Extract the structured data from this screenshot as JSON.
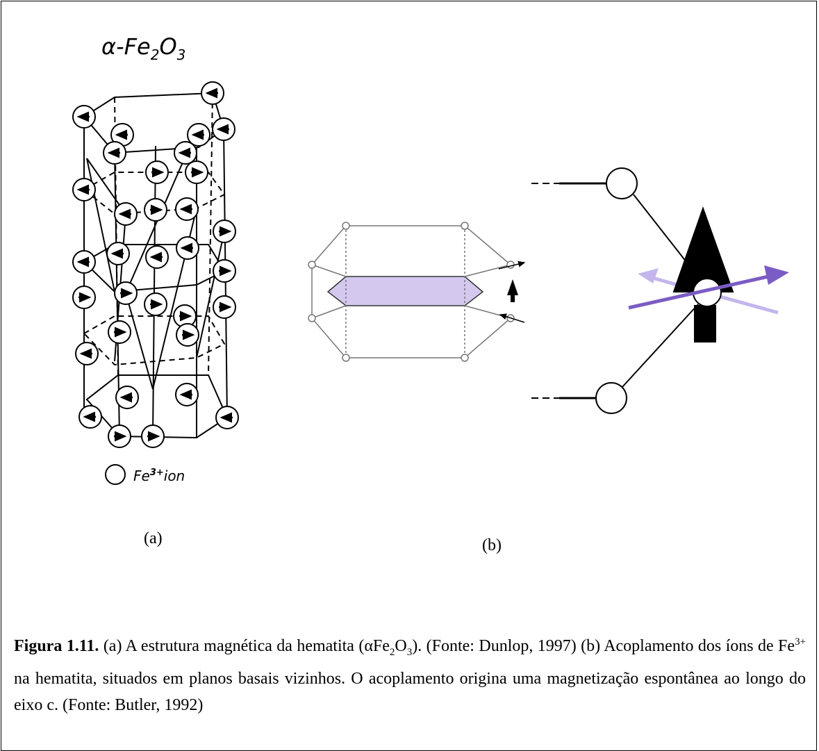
{
  "figure": {
    "panel_a": {
      "title": [
        "α-Fe",
        "2",
        "O",
        "3"
      ],
      "legend": [
        "Fe",
        "3+",
        "ion"
      ],
      "label": "(a)"
    },
    "panel_b": {
      "label": "(b)"
    },
    "caption": {
      "label": "Figura 1.11.",
      "parts": [
        "(a) A estrutura magnética da hematita (αFe",
        "2",
        "O",
        "3",
        "). (Fonte: Dunlop, 1997) (b) Acoplamento dos íons de Fe",
        "3+",
        "na hematita, situados em planos basais vizinhos. O acoplamento origina uma magnetização espontânea ao longo do eixo c. (Fonte: Butler, 1992)"
      ]
    }
  }
}
